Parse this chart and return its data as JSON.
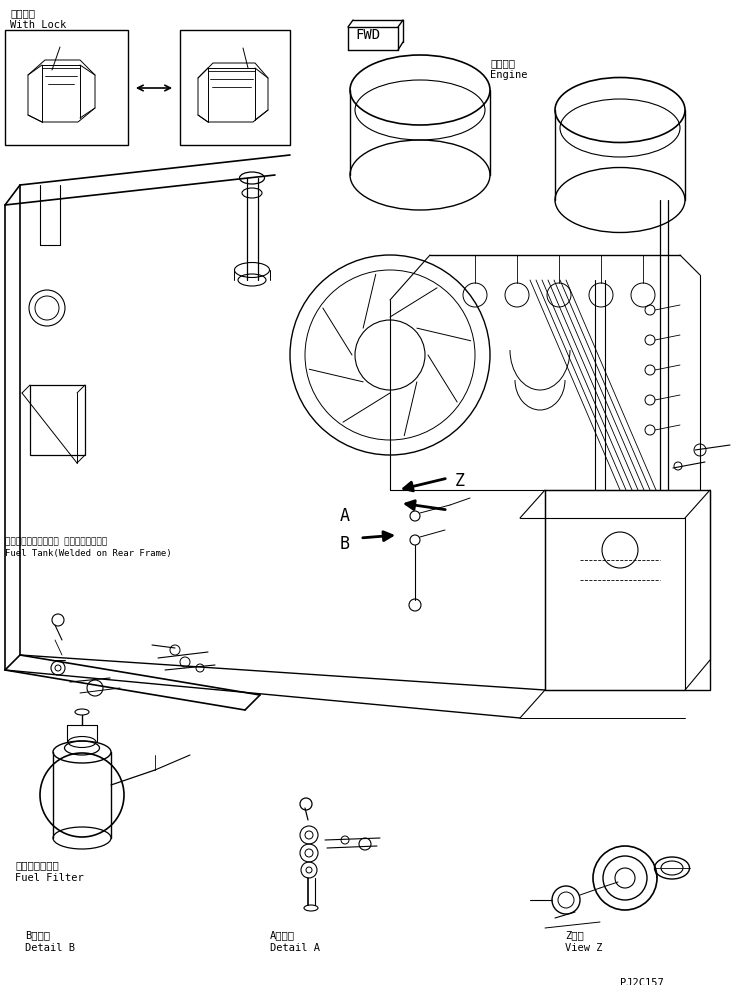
{
  "bg_color": "#ffffff",
  "line_color": "#000000",
  "fig_width": 7.33,
  "fig_height": 9.85,
  "dpi": 100,
  "labels": {
    "with_lock_jp": "ロック付",
    "with_lock_en": "With Lock",
    "engine_jp": "エンジン",
    "engine_en": "Engine",
    "fuel_tank_jp": "フェルタンク（リヤー フレームに溢接）",
    "fuel_tank_en": "Fuel Tank(Welded on Rear Frame)",
    "fuel_filter_jp": "フェルフィルタ",
    "fuel_filter_en": "Fuel Filter",
    "detail_b_jp": "B　詳細",
    "detail_b_en": "Detail B",
    "detail_a_jp": "A　詳細",
    "detail_a_en": "Detail A",
    "view_z_jp": "Z　視",
    "view_z_en": "View Z",
    "part_number": "PJ2C157",
    "fwd_label": "FWD",
    "label_z": "Z",
    "label_a": "A",
    "label_b": "B"
  }
}
